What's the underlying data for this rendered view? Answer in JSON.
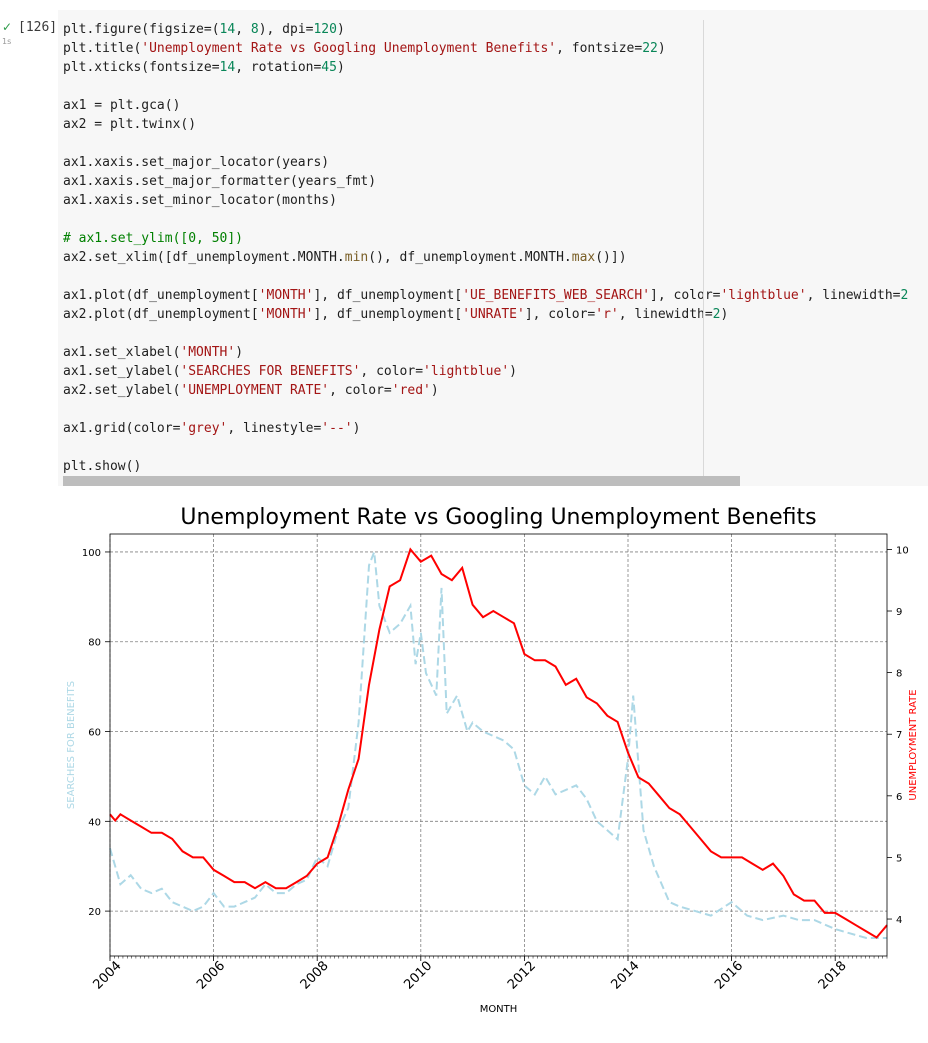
{
  "cell": {
    "exec_count": "[126]",
    "status_icon": "check-icon",
    "duration": "1s",
    "code_lines": [
      [
        {
          "t": "plt.figure(figsize=(",
          "k": ""
        },
        {
          "t": "14",
          "k": "n"
        },
        {
          "t": ", ",
          "k": ""
        },
        {
          "t": "8",
          "k": "n"
        },
        {
          "t": "), dpi=",
          "k": ""
        },
        {
          "t": "120",
          "k": "n"
        },
        {
          "t": ")",
          "k": ""
        }
      ],
      [
        {
          "t": "plt.title(",
          "k": ""
        },
        {
          "t": "'Unemployment Rate vs Googling Unemployment Benefits'",
          "k": "s"
        },
        {
          "t": ", fontsize=",
          "k": ""
        },
        {
          "t": "22",
          "k": "n"
        },
        {
          "t": ")",
          "k": ""
        }
      ],
      [
        {
          "t": "plt.xticks(fontsize=",
          "k": ""
        },
        {
          "t": "14",
          "k": "n"
        },
        {
          "t": ", rotation=",
          "k": ""
        },
        {
          "t": "45",
          "k": "n"
        },
        {
          "t": ")",
          "k": ""
        }
      ],
      [],
      [
        {
          "t": "ax1 = plt.gca()",
          "k": ""
        }
      ],
      [
        {
          "t": "ax2 = plt.twinx()",
          "k": ""
        }
      ],
      [],
      [
        {
          "t": "ax1.xaxis.set_major_locator(years)",
          "k": ""
        }
      ],
      [
        {
          "t": "ax1.xaxis.set_major_formatter(years_fmt)",
          "k": ""
        }
      ],
      [
        {
          "t": "ax1.xaxis.set_minor_locator(months)",
          "k": ""
        }
      ],
      [],
      [
        {
          "t": "# ax1.set_ylim([0, 50])",
          "k": "c"
        }
      ],
      [
        {
          "t": "ax2.set_xlim([df_unemployment.MONTH.",
          "k": ""
        },
        {
          "t": "min",
          "k": "f"
        },
        {
          "t": "(), df_unemployment.MONTH.",
          "k": ""
        },
        {
          "t": "max",
          "k": "f"
        },
        {
          "t": "()])",
          "k": ""
        }
      ],
      [],
      [
        {
          "t": "ax1.plot(df_unemployment[",
          "k": ""
        },
        {
          "t": "'MONTH'",
          "k": "s"
        },
        {
          "t": "], df_unemployment[",
          "k": ""
        },
        {
          "t": "'UE_BENEFITS_WEB_SEARCH'",
          "k": "s"
        },
        {
          "t": "], color=",
          "k": ""
        },
        {
          "t": "'lightblue'",
          "k": "s"
        },
        {
          "t": ", linewidth=",
          "k": ""
        },
        {
          "t": "2",
          "k": "n"
        }
      ],
      [
        {
          "t": "ax2.plot(df_unemployment[",
          "k": ""
        },
        {
          "t": "'MONTH'",
          "k": "s"
        },
        {
          "t": "], df_unemployment[",
          "k": ""
        },
        {
          "t": "'UNRATE'",
          "k": "s"
        },
        {
          "t": "], color=",
          "k": ""
        },
        {
          "t": "'r'",
          "k": "s"
        },
        {
          "t": ", linewidth=",
          "k": ""
        },
        {
          "t": "2",
          "k": "n"
        },
        {
          "t": ")",
          "k": ""
        }
      ],
      [],
      [
        {
          "t": "ax1.set_xlabel(",
          "k": ""
        },
        {
          "t": "'MONTH'",
          "k": "s"
        },
        {
          "t": ")",
          "k": ""
        }
      ],
      [
        {
          "t": "ax1.set_ylabel(",
          "k": ""
        },
        {
          "t": "'SEARCHES FOR BENEFITS'",
          "k": "s"
        },
        {
          "t": ", color=",
          "k": ""
        },
        {
          "t": "'lightblue'",
          "k": "s"
        },
        {
          "t": ")",
          "k": ""
        }
      ],
      [
        {
          "t": "ax2.set_ylabel(",
          "k": ""
        },
        {
          "t": "'UNEMPLOYMENT RATE'",
          "k": "s"
        },
        {
          "t": ", color=",
          "k": ""
        },
        {
          "t": "'red'",
          "k": "s"
        },
        {
          "t": ")",
          "k": ""
        }
      ],
      [],
      [
        {
          "t": "ax1.grid(color=",
          "k": ""
        },
        {
          "t": "'grey'",
          "k": "s"
        },
        {
          "t": ", linestyle=",
          "k": ""
        },
        {
          "t": "'--'",
          "k": "s"
        },
        {
          "t": ")",
          "k": ""
        }
      ],
      [],
      [
        {
          "t": "plt.show()",
          "k": ""
        }
      ]
    ]
  },
  "chart_data": {
    "type": "line",
    "title": "Unemployment Rate vs Googling Unemployment Benefits",
    "xlabel": "MONTH",
    "ylabel_left": "SEARCHES FOR BENEFITS",
    "ylabel_right": "UNEMPLOYMENT RATE",
    "xlim": [
      2004.0,
      2019.0
    ],
    "ylim_left": [
      10,
      104
    ],
    "ylim_right": [
      3.4,
      10.25
    ],
    "x_ticks": [
      "2004",
      "2006",
      "2008",
      "2010",
      "2012",
      "2014",
      "2016",
      "2018"
    ],
    "y_left_ticks": [
      "20",
      "40",
      "60",
      "80",
      "100"
    ],
    "y_right_ticks": [
      "4",
      "5",
      "6",
      "7",
      "8",
      "9",
      "10"
    ],
    "grid": true,
    "colors": {
      "searches": "#add8e6",
      "unrate": "#ff0000",
      "grid": "#808080"
    },
    "series": [
      {
        "name": "SEARCHES FOR BENEFITS",
        "axis": "left",
        "style": "dashed",
        "x": [
          2004.0,
          2004.2,
          2004.4,
          2004.6,
          2004.8,
          2005.0,
          2005.2,
          2005.4,
          2005.6,
          2005.8,
          2006.0,
          2006.2,
          2006.4,
          2006.6,
          2006.8,
          2007.0,
          2007.2,
          2007.4,
          2007.6,
          2007.8,
          2008.0,
          2008.2,
          2008.4,
          2008.6,
          2008.8,
          2009.0,
          2009.1,
          2009.2,
          2009.4,
          2009.6,
          2009.8,
          2009.9,
          2010.0,
          2010.1,
          2010.3,
          2010.4,
          2010.5,
          2010.7,
          2010.9,
          2011.0,
          2011.2,
          2011.4,
          2011.6,
          2011.8,
          2012.0,
          2012.2,
          2012.4,
          2012.6,
          2012.8,
          2013.0,
          2013.2,
          2013.4,
          2013.6,
          2013.8,
          2014.0,
          2014.1,
          2014.3,
          2014.5,
          2014.8,
          2015.0,
          2015.3,
          2015.6,
          2016.0,
          2016.3,
          2016.6,
          2017.0,
          2017.3,
          2017.6,
          2018.0,
          2018.3,
          2018.6,
          2019.0
        ],
        "y": [
          34,
          26,
          28,
          25,
          24,
          25,
          22,
          21,
          20,
          21,
          24,
          21,
          21,
          22,
          23,
          26,
          24,
          24,
          26,
          27,
          32,
          30,
          38,
          43,
          62,
          97,
          100,
          88,
          82,
          84,
          88,
          75,
          82,
          73,
          68,
          92,
          64,
          68,
          60,
          62,
          60,
          59,
          58,
          56,
          48,
          46,
          50,
          46,
          47,
          48,
          45,
          40,
          38,
          36,
          54,
          68,
          38,
          30,
          22,
          21,
          20,
          19,
          22,
          19,
          18,
          19,
          18,
          18,
          16,
          15,
          14,
          14
        ]
      },
      {
        "name": "UNEMPLOYMENT RATE",
        "axis": "right",
        "style": "solid",
        "x": [
          2004.0,
          2004.1,
          2004.2,
          2004.4,
          2004.6,
          2004.8,
          2005.0,
          2005.2,
          2005.4,
          2005.6,
          2005.8,
          2006.0,
          2006.2,
          2006.4,
          2006.6,
          2006.8,
          2007.0,
          2007.2,
          2007.4,
          2007.6,
          2007.8,
          2008.0,
          2008.2,
          2008.4,
          2008.6,
          2008.8,
          2009.0,
          2009.2,
          2009.4,
          2009.6,
          2009.8,
          2010.0,
          2010.2,
          2010.4,
          2010.6,
          2010.8,
          2011.0,
          2011.2,
          2011.4,
          2011.6,
          2011.8,
          2012.0,
          2012.2,
          2012.4,
          2012.6,
          2012.8,
          2013.0,
          2013.2,
          2013.4,
          2013.6,
          2013.8,
          2014.0,
          2014.2,
          2014.4,
          2014.6,
          2014.8,
          2015.0,
          2015.2,
          2015.4,
          2015.6,
          2015.8,
          2016.0,
          2016.2,
          2016.4,
          2016.6,
          2016.8,
          2017.0,
          2017.2,
          2017.4,
          2017.6,
          2017.8,
          2018.0,
          2018.2,
          2018.4,
          2018.6,
          2018.8,
          2019.0
        ],
        "y": [
          5.7,
          5.6,
          5.7,
          5.6,
          5.5,
          5.4,
          5.4,
          5.3,
          5.1,
          5.0,
          5.0,
          4.8,
          4.7,
          4.6,
          4.6,
          4.5,
          4.6,
          4.5,
          4.5,
          4.6,
          4.7,
          4.9,
          5.0,
          5.5,
          6.1,
          6.6,
          7.8,
          8.7,
          9.4,
          9.5,
          10.0,
          9.8,
          9.9,
          9.6,
          9.5,
          9.7,
          9.1,
          8.9,
          9.0,
          8.9,
          8.8,
          8.3,
          8.2,
          8.2,
          8.1,
          7.8,
          7.9,
          7.6,
          7.5,
          7.3,
          7.2,
          6.7,
          6.3,
          6.2,
          6.0,
          5.8,
          5.7,
          5.5,
          5.3,
          5.1,
          5.0,
          5.0,
          5.0,
          4.9,
          4.8,
          4.9,
          4.7,
          4.4,
          4.3,
          4.3,
          4.1,
          4.1,
          4.0,
          3.9,
          3.8,
          3.7,
          3.9
        ]
      }
    ]
  }
}
